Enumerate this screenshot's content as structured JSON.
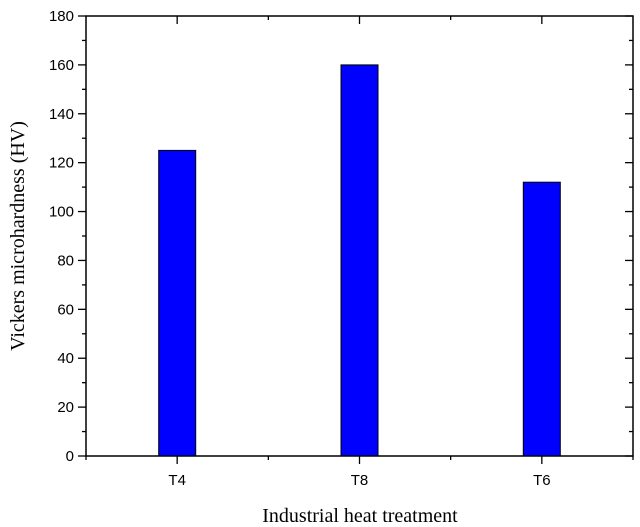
{
  "chart_data": {
    "type": "bar",
    "title": "",
    "xlabel": "Industrial heat treatment",
    "ylabel": "Vickers microhardness (HV)",
    "categories": [
      "T4",
      "T8",
      "T6"
    ],
    "values": [
      125,
      160,
      112
    ],
    "ylim": [
      0,
      180
    ],
    "yticks": [
      0,
      20,
      40,
      60,
      80,
      100,
      120,
      140,
      160,
      180
    ],
    "y_minor_step": 10,
    "grid": false,
    "legend": null,
    "bar_color": "#0000FF",
    "bar_edge_color": "#000000"
  }
}
